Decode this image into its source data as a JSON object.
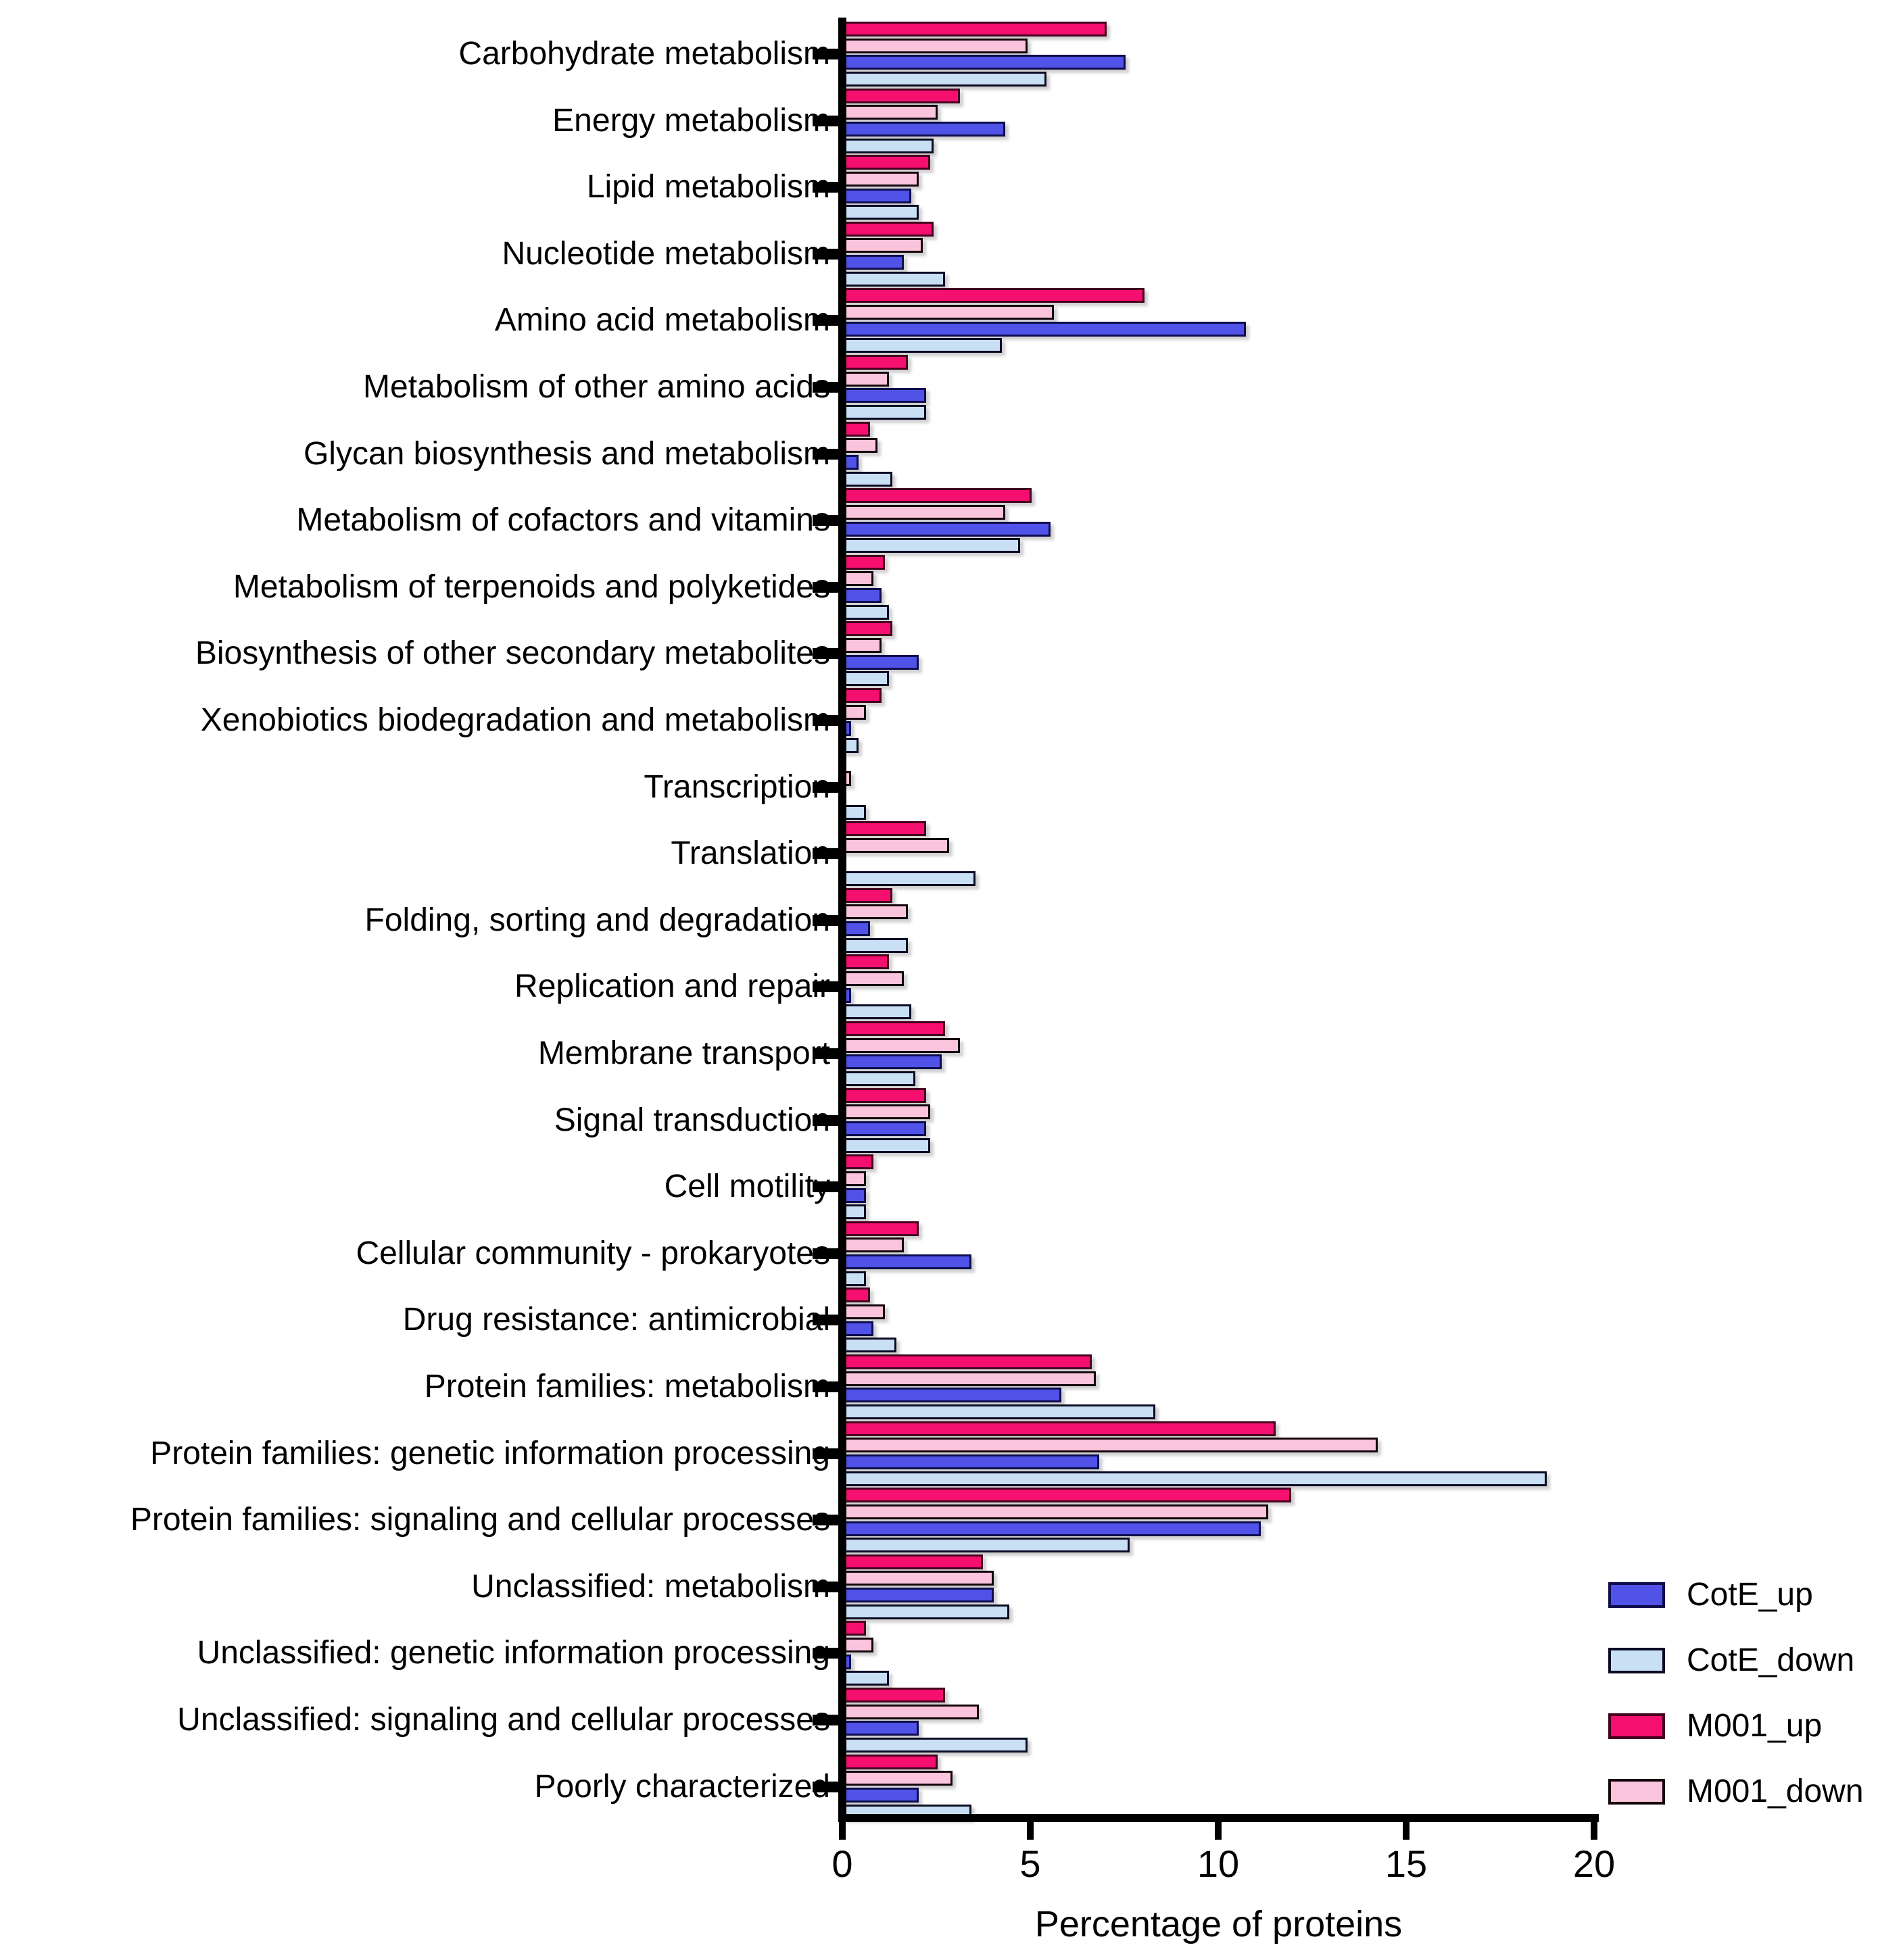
{
  "chart_data": {
    "type": "bar",
    "orientation": "horizontal",
    "title": "",
    "xlabel": "Percentage of proteins",
    "xlim": [
      0,
      20
    ],
    "xticks": [
      0,
      5,
      10,
      15,
      20
    ],
    "grid": false,
    "legend_position": "bottom-right",
    "categories": [
      "Carbohydrate metabolism",
      "Energy metabolism",
      "Lipid metabolism",
      "Nucleotide metabolism",
      "Amino acid metabolism",
      "Metabolism of other amino acids",
      "Glycan biosynthesis and metabolism",
      "Metabolism of cofactors and vitamins",
      "Metabolism of terpenoids and polyketides",
      "Biosynthesis of other secondary metabolites",
      "Xenobiotics biodegradation and metabolism",
      "Transcription",
      "Translation",
      "Folding, sorting and degradation",
      "Replication and repair",
      "Membrane transport",
      "Signal transduction",
      "Cell motility",
      "Cellular community - prokaryotes",
      "Drug resistance: antimicrobial",
      "Protein families: metabolism",
      "Protein families: genetic information processing",
      "Protein families: signaling and cellular processes",
      "Unclassified: metabolism",
      "Unclassified: genetic information processing",
      "Unclassified: signaling and cellular processes",
      "Poorly characterized"
    ],
    "series": [
      {
        "name": "M001_up",
        "color": "#F50F6E",
        "border": "#45001f",
        "values": [
          7.0,
          3.1,
          2.3,
          2.4,
          8.0,
          1.7,
          0.7,
          5.0,
          1.1,
          1.3,
          1.0,
          0,
          2.2,
          1.3,
          1.2,
          2.7,
          2.2,
          0.8,
          2.0,
          0.7,
          6.6,
          11.5,
          11.9,
          3.7,
          0.6,
          2.7,
          2.5
        ]
      },
      {
        "name": "M001_down",
        "color": "#FAC4DC",
        "border": "#14060c",
        "values": [
          4.9,
          2.5,
          2.0,
          2.1,
          5.6,
          1.2,
          0.9,
          4.3,
          0.8,
          1.0,
          0.6,
          0.2,
          2.8,
          1.7,
          1.6,
          3.1,
          2.3,
          0.6,
          1.6,
          1.1,
          6.7,
          14.2,
          11.3,
          4.0,
          0.8,
          3.6,
          2.9
        ]
      },
      {
        "name": "CotE_up",
        "color": "#5152E8",
        "border": "#0d0d4d",
        "values": [
          7.5,
          4.3,
          1.8,
          1.6,
          10.7,
          2.2,
          0.4,
          5.5,
          1.0,
          2.0,
          0.2,
          0,
          0,
          0.7,
          0.2,
          2.6,
          2.2,
          0.6,
          3.4,
          0.8,
          5.8,
          6.8,
          11.1,
          4.0,
          0.2,
          2.0,
          2.0
        ]
      },
      {
        "name": "CotE_down",
        "color": "#C9DFF4",
        "border": "#0a0a23",
        "values": [
          5.4,
          2.4,
          2.0,
          2.7,
          4.2,
          2.2,
          1.3,
          4.7,
          1.2,
          1.2,
          0.4,
          0.6,
          3.5,
          1.7,
          1.8,
          1.9,
          2.3,
          0.6,
          0.6,
          1.4,
          8.3,
          18.7,
          7.6,
          4.4,
          1.2,
          4.9,
          3.4
        ]
      }
    ],
    "legend": [
      {
        "label": "CotE_up",
        "color": "#5152E8",
        "border": "#0d0d4d"
      },
      {
        "label": "CotE_down",
        "color": "#C9DFF4",
        "border": "#0a0a23"
      },
      {
        "label": "M001_up",
        "color": "#F50F6E",
        "border": "#45001f"
      },
      {
        "label": "M001_down",
        "color": "#FAC4DC",
        "border": "#14060c"
      }
    ]
  }
}
